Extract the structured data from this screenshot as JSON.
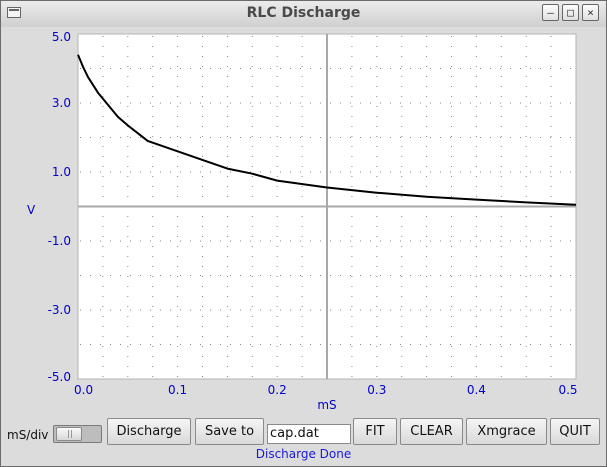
{
  "window": {
    "title": "RLC Discharge",
    "controls": {
      "minimize": "minimize-icon",
      "maximize": "maximize-icon",
      "close": "close-icon"
    }
  },
  "colors": {
    "axis_text": "#0000d0",
    "curve": "#000000",
    "grid": "#888888",
    "axis_line": "#a8a8a8",
    "plot_bg": "#ffffff"
  },
  "chart_data": {
    "type": "line",
    "title": "",
    "xlabel": "mS",
    "ylabel": "V",
    "xlim": [
      0.0,
      0.5
    ],
    "ylim": [
      -5.0,
      5.0
    ],
    "x_ticks": [
      "0.0",
      "0.1",
      "0.2",
      "0.3",
      "0.4",
      "0.5"
    ],
    "y_ticks": [
      "5.0",
      "3.0",
      "1.0",
      "-1.0",
      "-3.0",
      "-5.0"
    ],
    "grid": true,
    "series": [
      {
        "x": [
          0.0,
          0.005,
          0.01,
          0.02,
          0.03,
          0.04,
          0.05,
          0.07,
          0.1,
          0.13,
          0.15,
          0.175,
          0.2,
          0.25,
          0.3,
          0.35,
          0.4,
          0.45,
          0.5
        ],
        "y": [
          4.4,
          4.05,
          3.75,
          3.3,
          2.95,
          2.6,
          2.35,
          1.9,
          1.6,
          1.3,
          1.1,
          0.95,
          0.75,
          0.55,
          0.4,
          0.28,
          0.2,
          0.12,
          0.05
        ]
      }
    ]
  },
  "controls": {
    "slider_label": "mS/div",
    "discharge": "Discharge",
    "save_to": "Save to",
    "filename": "cap.dat",
    "fit": "FIT",
    "clear": "CLEAR",
    "xmgrace": "Xmgrace",
    "quit": "QUIT",
    "status": "Discharge Done"
  }
}
